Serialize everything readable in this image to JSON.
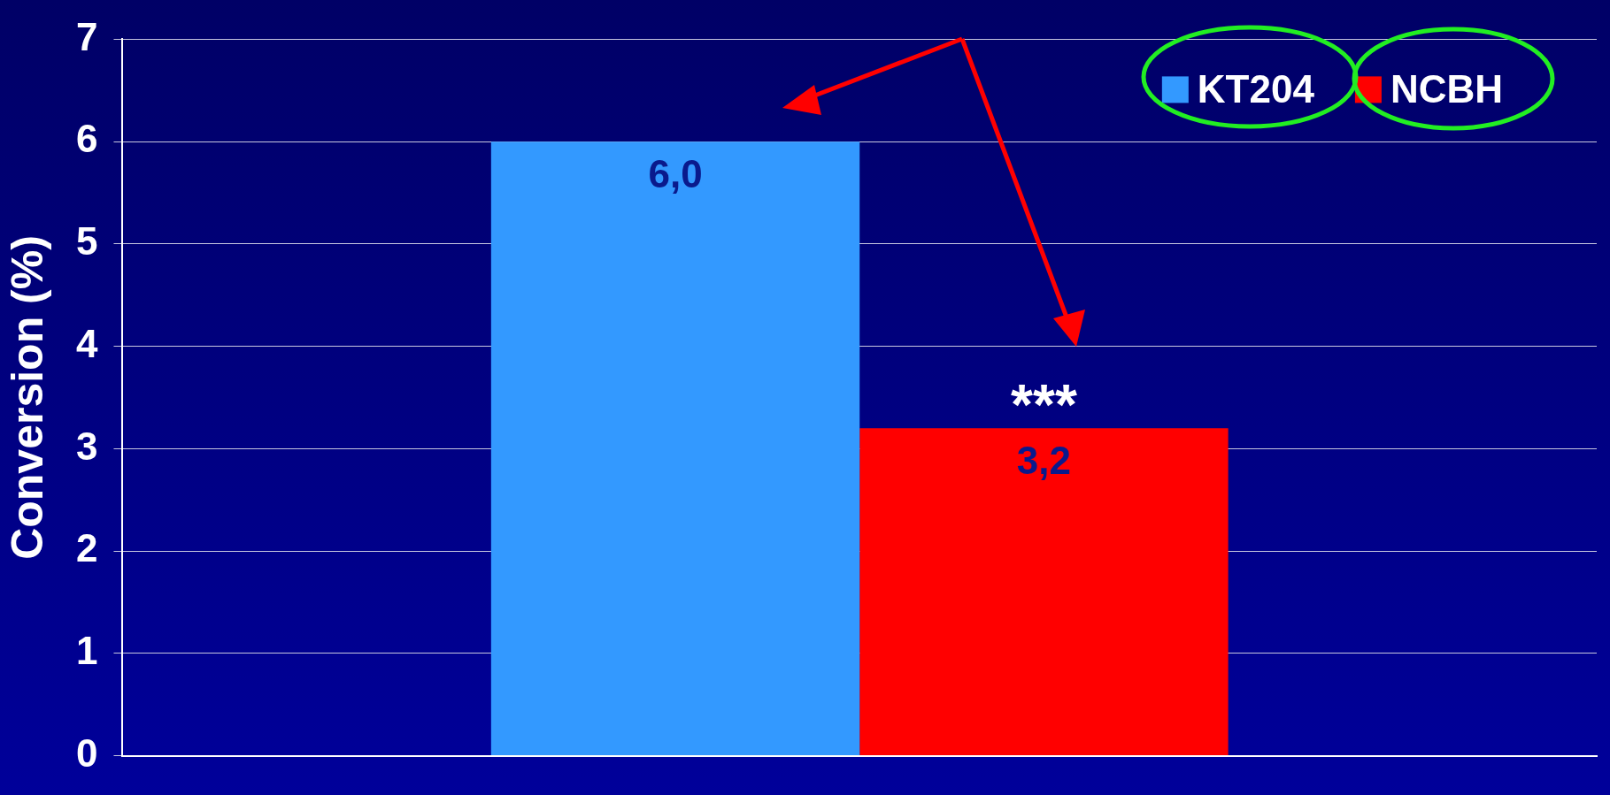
{
  "chart_data": {
    "type": "bar",
    "ylabel": "Conversion (%)",
    "categories": [
      null
    ],
    "series": [
      {
        "name": "KT204",
        "color": "#3399ff",
        "values": [
          6.0
        ],
        "value_labels": [
          "6,0"
        ]
      },
      {
        "name": "NCBH",
        "color": "#ff0000",
        "values": [
          3.2
        ],
        "value_labels": [
          "3,2"
        ]
      }
    ],
    "ylim": [
      0,
      7
    ],
    "yticks": [
      0,
      1,
      2,
      3,
      4,
      5,
      6,
      7
    ],
    "grid": "y",
    "legend": "top right",
    "annotations": [
      "***"
    ]
  }
}
